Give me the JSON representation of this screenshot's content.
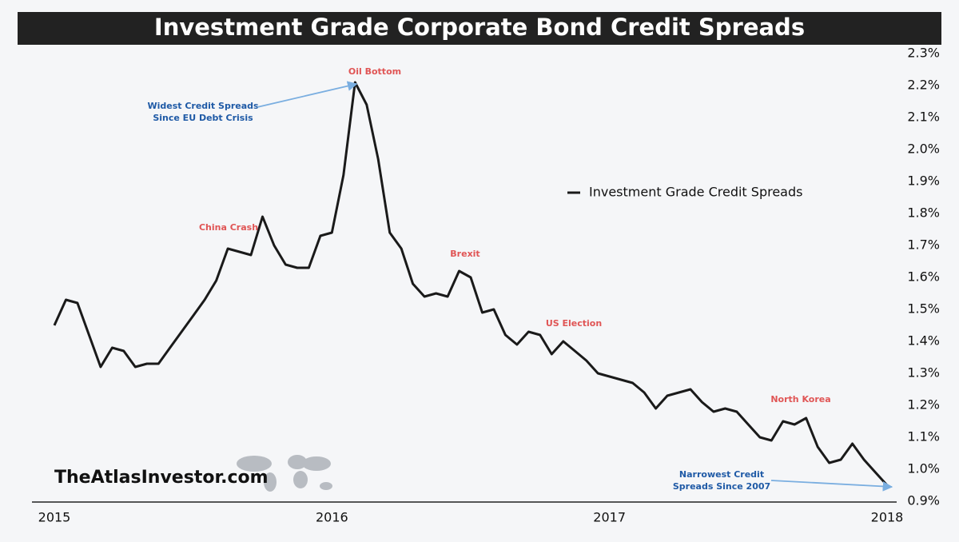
{
  "chart_data": {
    "type": "line",
    "title": "Investment Grade Corporate Bond Credit Spreads",
    "watermark": "TheAtlasInvestor.com",
    "categories": [
      "2015",
      null,
      null,
      null,
      null,
      null,
      null,
      null,
      null,
      null,
      null,
      null,
      null,
      null,
      null,
      null,
      null,
      null,
      null,
      null,
      null,
      null,
      null,
      null,
      "2016",
      null,
      null,
      null,
      null,
      null,
      null,
      null,
      null,
      null,
      null,
      null,
      null,
      null,
      null,
      null,
      null,
      null,
      null,
      null,
      null,
      null,
      null,
      null,
      "2017",
      null,
      null,
      null,
      null,
      null,
      null,
      null,
      null,
      null,
      null,
      null,
      null,
      null,
      null,
      null,
      null,
      null,
      null,
      null,
      null,
      null,
      null,
      null,
      "2018"
    ],
    "series": [
      {
        "name": "Investment Grade Credit Spreads",
        "color": "#1a1a1a",
        "values": [
          1.45,
          1.53,
          1.52,
          1.42,
          1.32,
          1.38,
          1.37,
          1.32,
          1.33,
          1.33,
          1.38,
          1.43,
          1.48,
          1.53,
          1.59,
          1.69,
          1.68,
          1.67,
          1.79,
          1.7,
          1.64,
          1.63,
          1.63,
          1.73,
          1.74,
          1.92,
          2.21,
          2.14,
          1.97,
          1.74,
          1.69,
          1.58,
          1.54,
          1.55,
          1.54,
          1.62,
          1.6,
          1.49,
          1.5,
          1.42,
          1.39,
          1.43,
          1.42,
          1.36,
          1.4,
          1.37,
          1.34,
          1.3,
          1.29,
          1.28,
          1.27,
          1.24,
          1.19,
          1.23,
          1.24,
          1.25,
          1.21,
          1.18,
          1.19,
          1.18,
          1.14,
          1.1,
          1.09,
          1.15,
          1.14,
          1.16,
          1.07,
          1.02,
          1.03,
          1.08,
          1.03,
          0.99,
          0.95
        ]
      }
    ],
    "ylim": [
      0.9,
      2.3
    ],
    "yticks": [
      {
        "value": 0.9,
        "label": "0.9%"
      },
      {
        "value": 1.0,
        "label": "1.0%"
      },
      {
        "value": 1.1,
        "label": "1.1%"
      },
      {
        "value": 1.2,
        "label": "1.2%"
      },
      {
        "value": 1.3,
        "label": "1.3%"
      },
      {
        "value": 1.4,
        "label": "1.4%"
      },
      {
        "value": 1.5,
        "label": "1.5%"
      },
      {
        "value": 1.6,
        "label": "1.6%"
      },
      {
        "value": 1.7,
        "label": "1.7%"
      },
      {
        "value": 1.8,
        "label": "1.8%"
      },
      {
        "value": 1.9,
        "label": "1.9%"
      },
      {
        "value": 2.0,
        "label": "2.0%"
      },
      {
        "value": 2.1,
        "label": "2.1%"
      },
      {
        "value": 2.2,
        "label": "2.2%"
      },
      {
        "value": 2.3,
        "label": "2.3%"
      }
    ],
    "annotations": [
      {
        "lines": [
          "Oil Bottom"
        ]
      },
      {
        "lines": [
          "China Crash"
        ]
      },
      {
        "lines": [
          "Brexit"
        ]
      },
      {
        "lines": [
          "US Election"
        ]
      },
      {
        "lines": [
          "North Korea"
        ]
      },
      {
        "lines": [
          "Widest Credit Spreads",
          "Since EU Debt Crisis"
        ]
      },
      {
        "lines": [
          "Narrowest Credit",
          "Spreads Since 2007"
        ]
      }
    ]
  }
}
